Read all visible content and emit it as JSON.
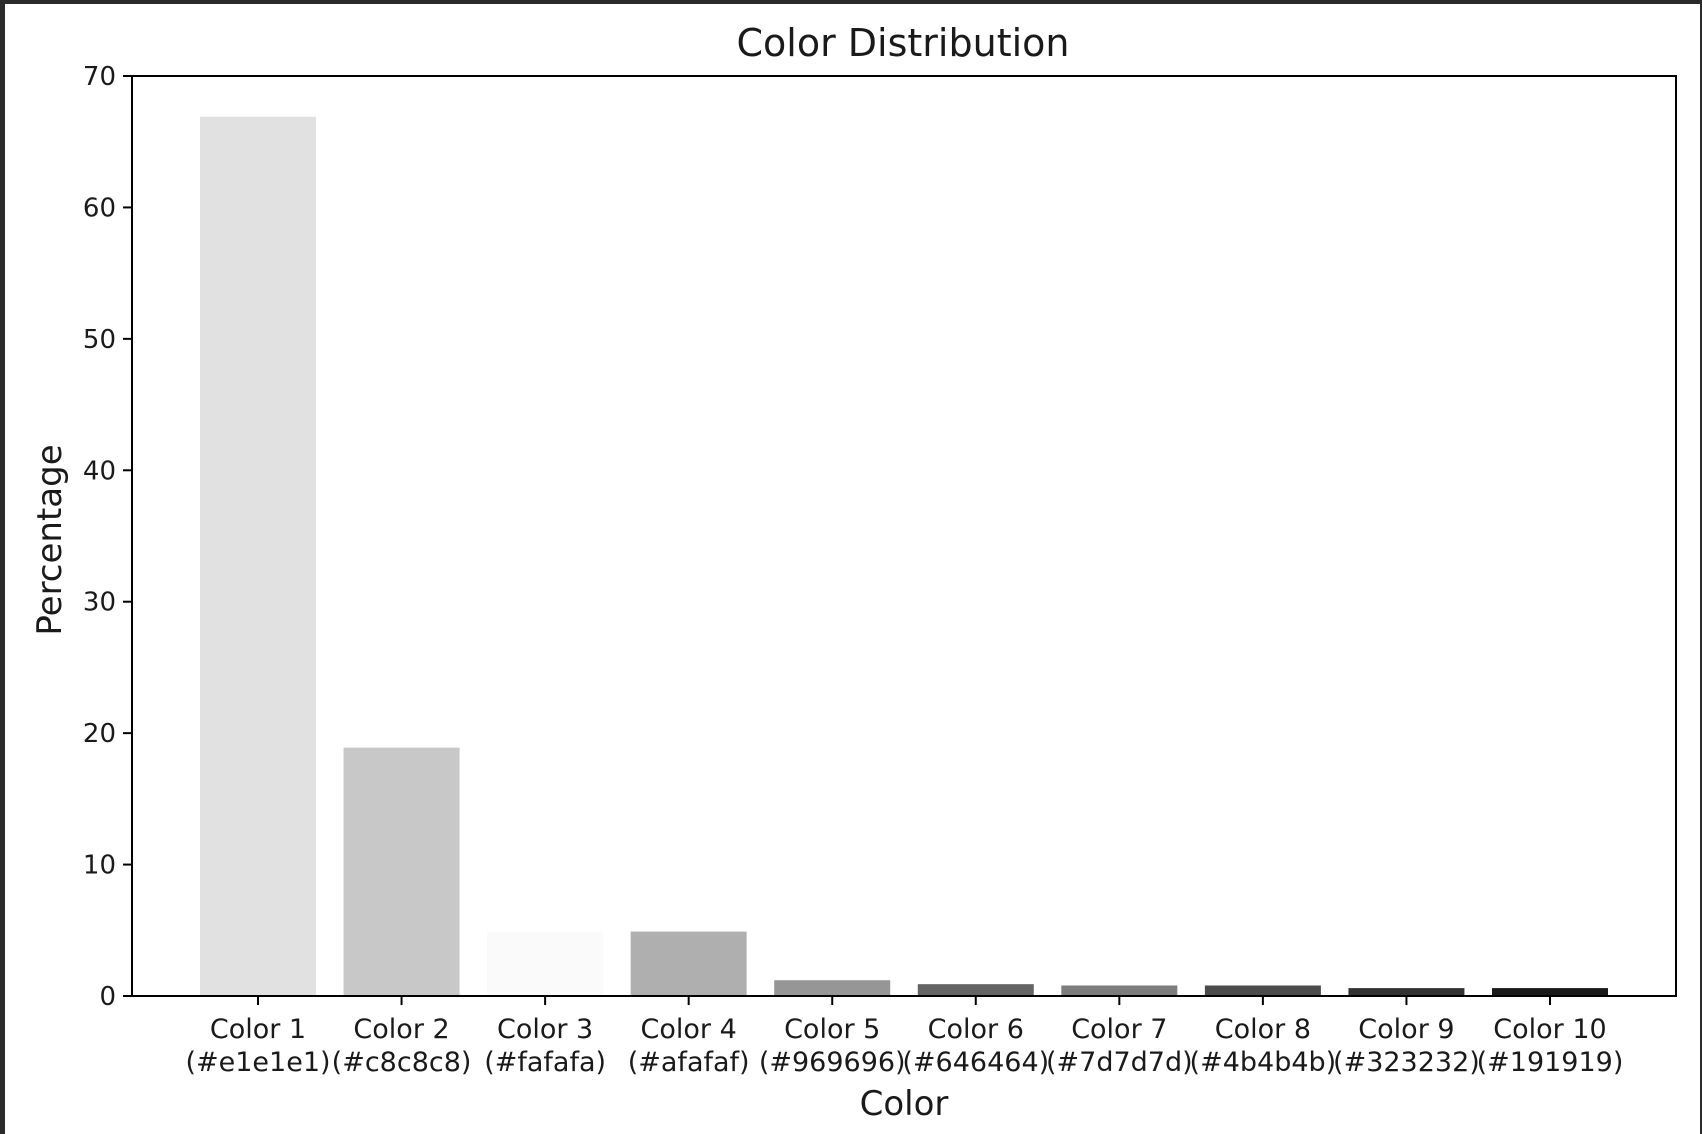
{
  "chart_data": {
    "type": "bar",
    "title": "Color Distribution",
    "xlabel": "Color",
    "ylabel": "Percentage",
    "ylim": [
      0,
      70
    ],
    "yticks": [
      0,
      10,
      20,
      30,
      40,
      50,
      60,
      70
    ],
    "grid": false,
    "legend": "none",
    "categories": [
      {
        "name": "Color 1",
        "hex_label": "(#e1e1e1)"
      },
      {
        "name": "Color 2",
        "hex_label": "(#c8c8c8)"
      },
      {
        "name": "Color 3",
        "hex_label": "(#fafafa)"
      },
      {
        "name": "Color 4",
        "hex_label": "(#afafaf)"
      },
      {
        "name": "Color 5",
        "hex_label": "(#969696)"
      },
      {
        "name": "Color 6",
        "hex_label": "(#646464)"
      },
      {
        "name": "Color 7",
        "hex_label": "(#7d7d7d)"
      },
      {
        "name": "Color 8",
        "hex_label": "(#4b4b4b)"
      },
      {
        "name": "Color 9",
        "hex_label": "(#323232)"
      },
      {
        "name": "Color 10",
        "hex_label": "(#191919)"
      }
    ],
    "values": [
      66.9,
      18.9,
      4.9,
      4.9,
      1.2,
      0.9,
      0.8,
      0.8,
      0.6,
      0.6
    ],
    "bar_colors": [
      "#e1e1e1",
      "#c8c8c8",
      "#fafafa",
      "#afafaf",
      "#969696",
      "#646464",
      "#7d7d7d",
      "#4b4b4b",
      "#323232",
      "#191919"
    ]
  }
}
